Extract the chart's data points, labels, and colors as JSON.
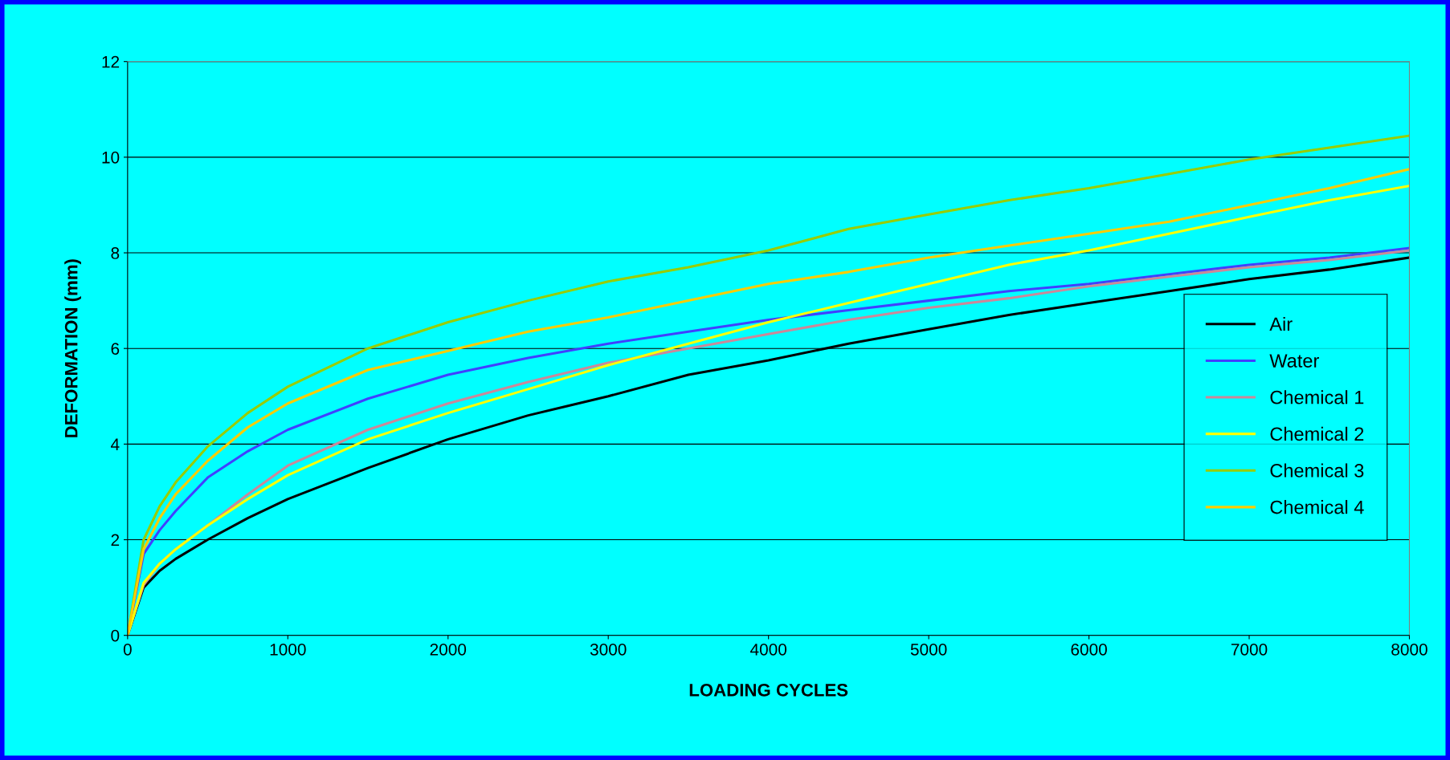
{
  "chart_data": {
    "type": "line",
    "xlabel": "LOADING CYCLES",
    "ylabel": "DEFORMATION (mm)",
    "x": [
      0,
      100,
      200,
      300,
      500,
      750,
      1000,
      1500,
      2000,
      2500,
      3000,
      3500,
      4000,
      4500,
      5000,
      5500,
      6000,
      6500,
      7000,
      7500,
      8000
    ],
    "series": [
      {
        "name": "Air",
        "color": "#000000",
        "values": [
          0,
          1.0,
          1.35,
          1.6,
          2.0,
          2.45,
          2.85,
          3.5,
          4.1,
          4.6,
          5.0,
          5.45,
          5.75,
          6.1,
          6.4,
          6.7,
          6.95,
          7.2,
          7.45,
          7.65,
          7.9
        ]
      },
      {
        "name": "Water",
        "color": "#4040ff",
        "values": [
          0,
          1.7,
          2.2,
          2.6,
          3.3,
          3.85,
          4.3,
          4.95,
          5.45,
          5.8,
          6.1,
          6.35,
          6.6,
          6.8,
          7.0,
          7.2,
          7.35,
          7.55,
          7.75,
          7.9,
          8.1
        ]
      },
      {
        "name": "Chemical 1",
        "color": "#cc8899",
        "values": [
          0,
          1.05,
          1.5,
          1.8,
          2.3,
          2.95,
          3.55,
          4.3,
          4.85,
          5.3,
          5.7,
          6.0,
          6.3,
          6.6,
          6.85,
          7.05,
          7.3,
          7.5,
          7.7,
          7.85,
          8.05
        ]
      },
      {
        "name": "Chemical 2",
        "color": "#ffff00",
        "values": [
          0,
          1.1,
          1.5,
          1.8,
          2.3,
          2.85,
          3.35,
          4.1,
          4.65,
          5.15,
          5.65,
          6.1,
          6.55,
          6.95,
          7.35,
          7.75,
          8.05,
          8.4,
          8.75,
          9.1,
          9.4
        ]
      },
      {
        "name": "Chemical 3",
        "color": "#99cc00",
        "values": [
          0,
          2.0,
          2.7,
          3.2,
          3.95,
          4.65,
          5.2,
          6.0,
          6.55,
          7.0,
          7.4,
          7.7,
          8.05,
          8.5,
          8.8,
          9.1,
          9.35,
          9.65,
          9.95,
          10.2,
          10.45
        ]
      },
      {
        "name": "Chemical 4",
        "color": "#ffcc00",
        "values": [
          0,
          1.8,
          2.45,
          2.95,
          3.65,
          4.35,
          4.85,
          5.55,
          5.95,
          6.35,
          6.65,
          7.0,
          7.35,
          7.6,
          7.9,
          8.15,
          8.4,
          8.65,
          9.0,
          9.35,
          9.75
        ]
      }
    ],
    "xlim": [
      0,
      8000
    ],
    "xticks": [
      0,
      1000,
      2000,
      3000,
      4000,
      5000,
      6000,
      7000,
      8000
    ],
    "ylim": [
      0,
      12
    ],
    "yticks": [
      0,
      2,
      4,
      6,
      8,
      10,
      12
    ],
    "grid": "y",
    "legend": "right",
    "marker": "none",
    "line_style": "solid"
  }
}
